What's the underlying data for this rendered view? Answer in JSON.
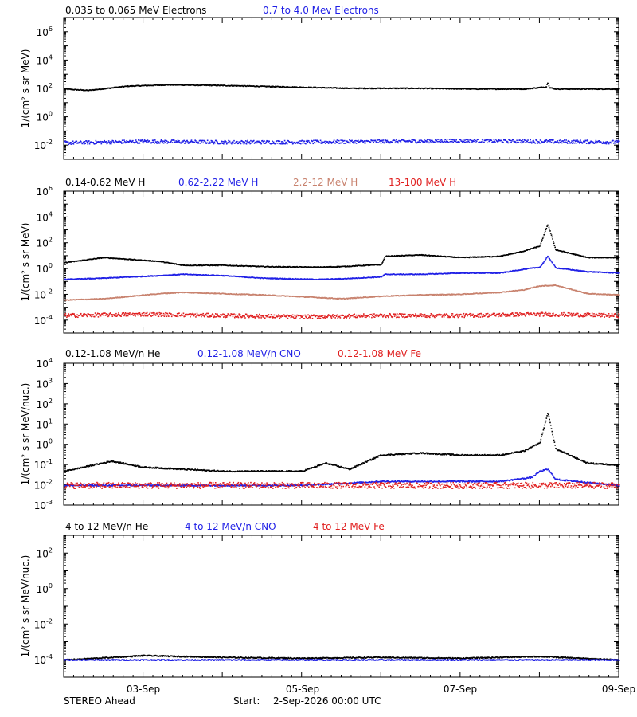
{
  "footer": {
    "spacecraft": "STEREO Ahead",
    "start_label": "Start:",
    "start_value": "2-Sep-2026 00:00 UTC"
  },
  "colors": {
    "black": "#000000",
    "blue": "#1f1fe6",
    "tan": "#c8826e",
    "red": "#e01f1f"
  },
  "chart_data": [
    {
      "type": "scatter",
      "panel": "electrons",
      "ylabel": "1/(cm² s sr MeV)",
      "yscale": "log",
      "ylim_log10": [
        -3,
        7
      ],
      "ytick_exponents": [
        -2,
        0,
        2,
        4,
        6
      ],
      "xlim_days": [
        "2-Sep-2026",
        "9-Sep-2026"
      ],
      "xticks": [
        "03-Sep",
        "05-Sep",
        "07-Sep",
        "09-Sep"
      ],
      "legend_placement": "top-left (above plot)",
      "series": [
        {
          "name": "0.035 to 0.065 MeV Electrons",
          "color": "black",
          "x_day": [
            0,
            0.3,
            0.8,
            1.3,
            2.0,
            2.8,
            3.6,
            4.4,
            5.2,
            5.8,
            6.08,
            6.1,
            6.12,
            6.2,
            6.6,
            7.0
          ],
          "log10_y": [
            2.0,
            1.9,
            2.2,
            2.3,
            2.25,
            2.15,
            2.05,
            2.05,
            2.0,
            2.0,
            2.15,
            2.5,
            2.1,
            2.0,
            2.0,
            2.0
          ]
        },
        {
          "name": "0.7 to 4.0 Mev Electrons",
          "color": "blue",
          "x_day": [
            0,
            1,
            2,
            3,
            4,
            5,
            6,
            7
          ],
          "log10_y": [
            -1.8,
            -1.7,
            -1.75,
            -1.75,
            -1.7,
            -1.65,
            -1.7,
            -1.75
          ]
        }
      ]
    },
    {
      "type": "scatter",
      "panel": "protons",
      "ylabel": "1/(cm² s sr MeV)",
      "yscale": "log",
      "ylim_log10": [
        -5,
        6
      ],
      "ytick_exponents": [
        -4,
        -2,
        0,
        2,
        4,
        6
      ],
      "xticks": [
        "03-Sep",
        "05-Sep",
        "07-Sep",
        "09-Sep"
      ],
      "legend_placement": "top-left (above plot)",
      "series": [
        {
          "name": "0.14-0.62 MeV H",
          "color": "black",
          "x_day": [
            0,
            0.5,
            1.2,
            1.5,
            2.0,
            2.5,
            3.2,
            3.5,
            4.0,
            4.05,
            4.5,
            5.0,
            5.5,
            5.8,
            6.0,
            6.1,
            6.2,
            6.6,
            7.0
          ],
          "log10_y": [
            0.5,
            0.9,
            0.6,
            0.3,
            0.3,
            0.2,
            0.15,
            0.2,
            0.35,
            1.0,
            1.1,
            0.9,
            1.0,
            1.4,
            1.8,
            3.5,
            1.5,
            0.9,
            0.9
          ]
        },
        {
          "name": "0.62-2.22 MeV H",
          "color": "blue",
          "x_day": [
            0,
            0.5,
            1.2,
            1.5,
            2.0,
            2.5,
            3.2,
            3.5,
            4.0,
            4.05,
            4.5,
            5.0,
            5.5,
            5.8,
            6.0,
            6.1,
            6.2,
            6.6,
            7.0
          ],
          "log10_y": [
            -0.8,
            -0.7,
            -0.5,
            -0.4,
            -0.5,
            -0.7,
            -0.8,
            -0.75,
            -0.6,
            -0.4,
            -0.4,
            -0.3,
            -0.3,
            0,
            0.15,
            1.0,
            0.1,
            -0.2,
            -0.3
          ]
        },
        {
          "name": "2.2-12 MeV H",
          "color": "tan",
          "x_day": [
            0,
            0.5,
            1.2,
            1.5,
            2.0,
            2.5,
            3.2,
            3.5,
            4.0,
            4.5,
            5.0,
            5.5,
            5.8,
            6.0,
            6.2,
            6.6,
            7.0
          ],
          "log10_y": [
            -2.4,
            -2.3,
            -1.9,
            -1.8,
            -1.9,
            -2.0,
            -2.2,
            -2.3,
            -2.1,
            -2.0,
            -1.95,
            -1.8,
            -1.6,
            -1.3,
            -1.25,
            -1.9,
            -2.0
          ]
        },
        {
          "name": "13-100 MeV H",
          "color": "red",
          "x_day": [
            0,
            1,
            2,
            3,
            4,
            5,
            6,
            7
          ],
          "log10_y": [
            -3.6,
            -3.5,
            -3.6,
            -3.7,
            -3.6,
            -3.6,
            -3.5,
            -3.6
          ]
        }
      ]
    },
    {
      "type": "scatter",
      "panel": "low-energy-ions",
      "ylabel": "1/(cm² s sr MeV/nuc.)",
      "yscale": "log",
      "ylim_log10": [
        -3,
        4
      ],
      "ytick_exponents": [
        -3,
        -2,
        -1,
        0,
        1,
        2,
        3,
        4
      ],
      "xticks": [
        "03-Sep",
        "05-Sep",
        "07-Sep",
        "09-Sep"
      ],
      "legend_placement": "top-left (above plot)",
      "series": [
        {
          "name": "0.12-1.08 MeV/n He",
          "color": "black",
          "x_day": [
            0,
            0.6,
            1.0,
            2.0,
            3.0,
            3.3,
            3.6,
            4.0,
            4.5,
            5.0,
            5.5,
            5.8,
            6.0,
            6.1,
            6.2,
            6.6,
            7.0
          ],
          "log10_y": [
            -1.3,
            -0.8,
            -1.1,
            -1.3,
            -1.3,
            -0.9,
            -1.2,
            -0.5,
            -0.4,
            -0.5,
            -0.5,
            -0.3,
            0.1,
            1.6,
            -0.2,
            -0.9,
            -1.0
          ]
        },
        {
          "name": "0.12-1.08 MeV/n CNO",
          "color": "blue",
          "x_day": [
            0,
            1,
            2,
            3,
            4,
            5,
            5.5,
            5.9,
            6.0,
            6.1,
            6.2,
            7.0
          ],
          "log10_y": [
            -2.0,
            -2.0,
            -2.0,
            -2.0,
            -1.8,
            -1.8,
            -1.8,
            -1.6,
            -1.3,
            -1.2,
            -1.7,
            -2.0
          ]
        },
        {
          "name": "0.12-1.08 MeV Fe",
          "color": "red",
          "x_day": [
            0,
            1,
            2,
            3,
            4,
            5,
            6,
            7
          ],
          "log10_y": [
            -2.0,
            -2.0,
            -2.0,
            -2.0,
            -2.0,
            -2.0,
            -2.0,
            -2.0
          ]
        }
      ]
    },
    {
      "type": "scatter",
      "panel": "high-energy-ions",
      "ylabel": "1/(cm² s sr MeV/nuc.)",
      "yscale": "log",
      "ylim_log10": [
        -5,
        3
      ],
      "ytick_exponents": [
        -4,
        -2,
        0,
        2
      ],
      "xticks": [
        "03-Sep",
        "05-Sep",
        "07-Sep",
        "09-Sep"
      ],
      "legend_placement": "top-left (above plot)",
      "series": [
        {
          "name": "4 to 12 MeV/n He",
          "color": "black",
          "x_day": [
            0,
            1,
            2,
            3,
            4,
            5,
            6,
            7
          ],
          "log10_y": [
            -4.0,
            -3.75,
            -3.85,
            -3.9,
            -3.85,
            -3.9,
            -3.8,
            -4.0
          ]
        },
        {
          "name": "4 to 12 MeV/n CNO",
          "color": "blue",
          "x_day": [
            0,
            1,
            2,
            3,
            4,
            5,
            6,
            7
          ],
          "log10_y": [
            -4.0,
            -4.0,
            -4.0,
            -4.0,
            -4.0,
            -4.0,
            -4.0,
            -4.0
          ]
        },
        {
          "name": "4 to 12 MeV Fe",
          "color": "red",
          "x_day": [],
          "log10_y": []
        }
      ]
    }
  ]
}
